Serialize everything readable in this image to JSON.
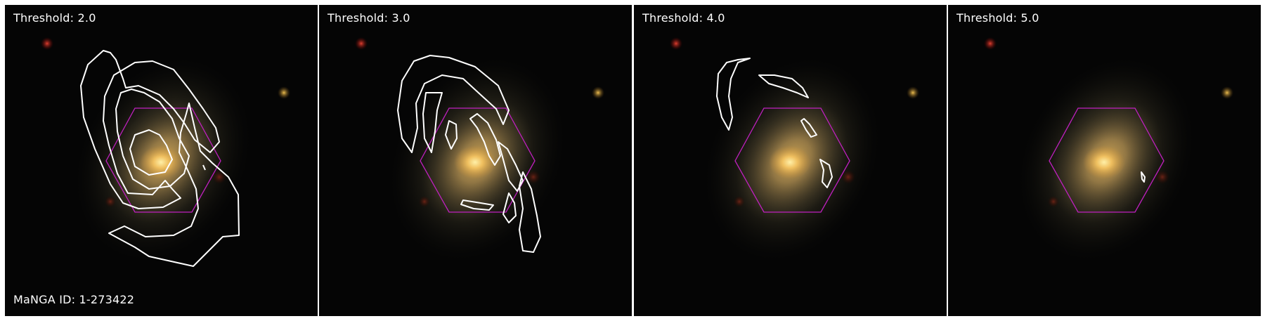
{
  "panels": [
    {
      "threshold_label": "Threshold: 2.0"
    },
    {
      "threshold_label": "Threshold: 3.0"
    },
    {
      "threshold_label": "Threshold: 4.0"
    },
    {
      "threshold_label": "Threshold: 5.0"
    }
  ],
  "manga_id_label": "MaNGA ID: 1-273422",
  "colors": {
    "contour": "#ffffff",
    "ifu_hexagon": "#c020c0",
    "background": "#050505"
  }
}
